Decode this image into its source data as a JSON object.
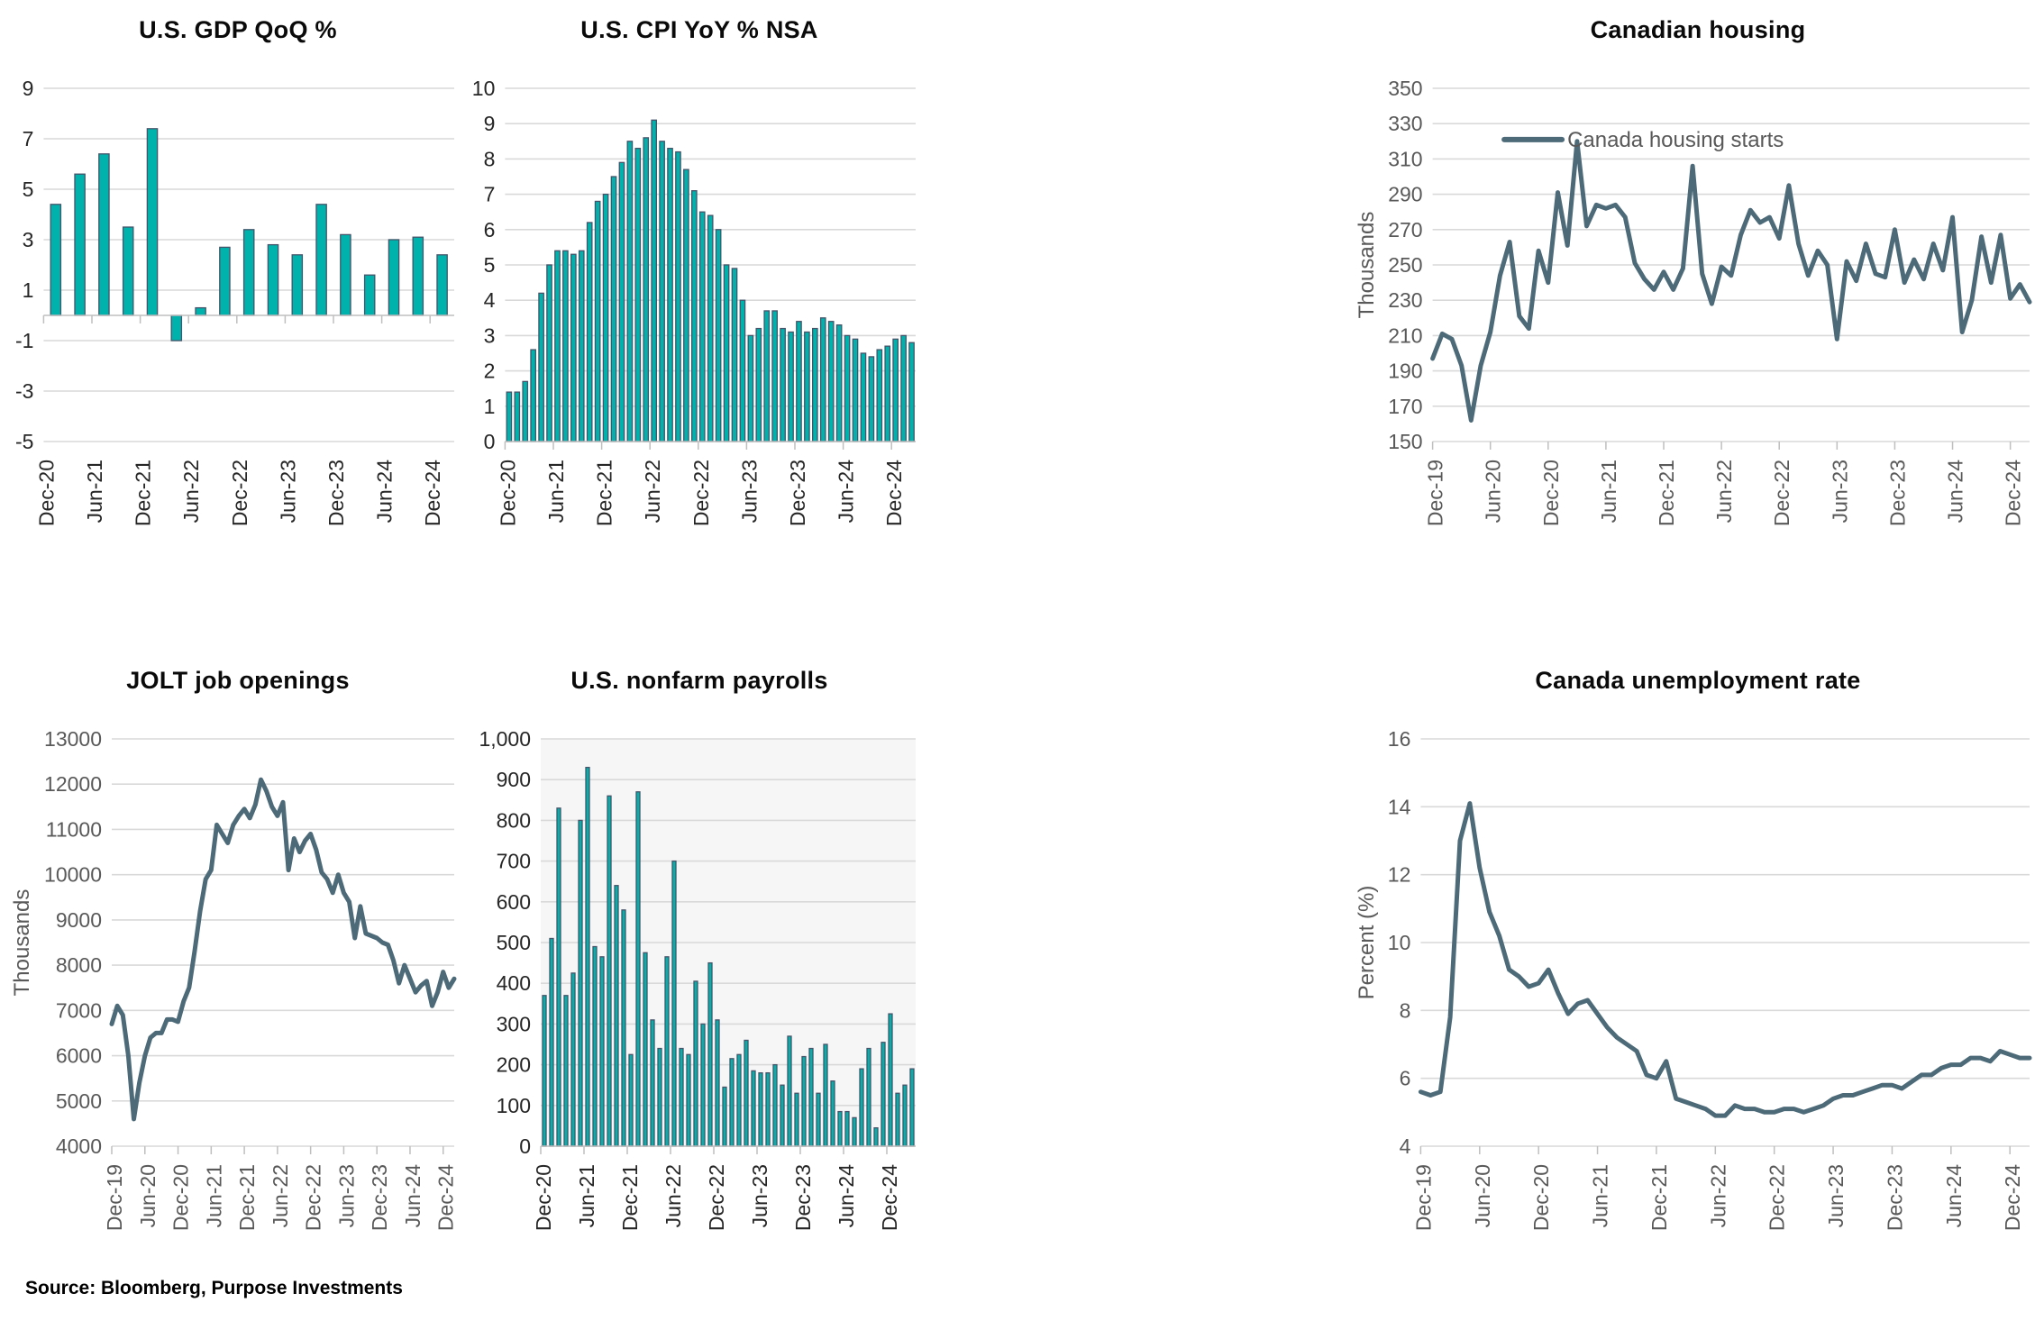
{
  "page": {
    "source": "Source: Bloomberg, Purpose Investments"
  },
  "colors": {
    "bar_fill": "#00b2ac",
    "bar_stroke": "#44546a",
    "line": "#4d6a79",
    "grid": "#d9d9d9",
    "axis_line": "#bfbfbf",
    "axis_text_bar": "#262626",
    "axis_text_line": "#595959",
    "legend_text": "#595959",
    "title_text": "#0a0a0a",
    "nonfarm_plot_bg": "#f6f6f6"
  },
  "chart_data": [
    {
      "id": "gdp",
      "type": "bar",
      "title": "U.S. GDP QoQ %",
      "x_start": "Dec-20",
      "x_tick_labels": [
        "Dec-20",
        "Jun-21",
        "Dec-21",
        "Jun-22",
        "Dec-22",
        "Jun-23",
        "Dec-23",
        "Jun-24",
        "Dec-24"
      ],
      "x_tick_step": 2,
      "y_ticks": [
        9,
        7,
        5,
        3,
        1,
        -1,
        -3,
        -5
      ],
      "y_tick_labels": [
        "9",
        "7",
        "5",
        "3",
        "1",
        "-1",
        "-3",
        "-5"
      ],
      "y_min": -5,
      "y_max": 9,
      "values": [
        4.4,
        5.6,
        6.4,
        3.5,
        7.4,
        -1.0,
        0.3,
        2.7,
        3.4,
        2.8,
        2.4,
        4.4,
        3.2,
        1.6,
        3.0,
        3.1,
        2.4
      ]
    },
    {
      "id": "cpi",
      "type": "bar",
      "title": "U.S. CPI YoY % NSA",
      "x_start": "Dec-20",
      "x_tick_labels": [
        "Dec-20",
        "Jun-21",
        "Dec-21",
        "Jun-22",
        "Dec-22",
        "Jun-23",
        "Dec-23",
        "Jun-24",
        "Dec-24"
      ],
      "x_tick_step": 6,
      "y_ticks": [
        10,
        9,
        8,
        7,
        6,
        5,
        4,
        3,
        2,
        1,
        0
      ],
      "y_tick_labels": [
        "10",
        "9",
        "8",
        "7",
        "6",
        "5",
        "4",
        "3",
        "2",
        "1",
        "0"
      ],
      "y_min": 0,
      "y_max": 10,
      "values": [
        1.4,
        1.4,
        1.7,
        2.6,
        4.2,
        5.0,
        5.4,
        5.4,
        5.3,
        5.4,
        6.2,
        6.8,
        7.0,
        7.5,
        7.9,
        8.5,
        8.3,
        8.6,
        9.1,
        8.5,
        8.3,
        8.2,
        7.7,
        7.1,
        6.5,
        6.4,
        6.0,
        5.0,
        4.9,
        4.0,
        3.0,
        3.2,
        3.7,
        3.7,
        3.2,
        3.1,
        3.4,
        3.1,
        3.2,
        3.5,
        3.4,
        3.3,
        3.0,
        2.9,
        2.5,
        2.4,
        2.6,
        2.7,
        2.9,
        3.0,
        2.8
      ]
    },
    {
      "id": "housing",
      "type": "line",
      "title": "Canadian housing",
      "ylabel": "Thousands",
      "legend": "Canada housing starts",
      "x_start": "Dec-19",
      "x_tick_labels": [
        "Dec-19",
        "Jun-20",
        "Dec-20",
        "Jun-21",
        "Dec-21",
        "Jun-22",
        "Dec-22",
        "Jun-23",
        "Dec-23",
        "Jun-24",
        "Dec-24"
      ],
      "x_tick_step": 6,
      "y_ticks": [
        350,
        330,
        310,
        290,
        270,
        250,
        230,
        210,
        190,
        170,
        150
      ],
      "y_tick_labels": [
        "350",
        "330",
        "310",
        "290",
        "270",
        "250",
        "230",
        "210",
        "190",
        "170",
        "150"
      ],
      "y_min": 150,
      "y_max": 350,
      "values": [
        197,
        211,
        208,
        193,
        162,
        193,
        212,
        244,
        263,
        221,
        214,
        258,
        240,
        291,
        261,
        320,
        272,
        284,
        282,
        284,
        277,
        251,
        242,
        236,
        246,
        236,
        248,
        306,
        245,
        228,
        249,
        244,
        267,
        281,
        274,
        277,
        265,
        295,
        262,
        244,
        258,
        250,
        208,
        252,
        241,
        262,
        245,
        243,
        270,
        240,
        253,
        242,
        262,
        247,
        277,
        212,
        230,
        266,
        240,
        267,
        231,
        239,
        229
      ]
    },
    {
      "id": "jolt",
      "type": "line",
      "title": "JOLT job openings",
      "ylabel": "Thousands",
      "x_start": "Dec-19",
      "x_tick_labels": [
        "Dec-19",
        "Jun-20",
        "Dec-20",
        "Jun-21",
        "Dec-21",
        "Jun-22",
        "Dec-22",
        "Jun-23",
        "Dec-23",
        "Jun-24",
        "Dec-24"
      ],
      "x_tick_step": 6,
      "y_ticks": [
        13000,
        12000,
        11000,
        10000,
        9000,
        8000,
        7000,
        6000,
        5000,
        4000
      ],
      "y_tick_labels": [
        "13000",
        "12000",
        "11000",
        "10000",
        "9000",
        "8000",
        "7000",
        "6000",
        "5000",
        "4000"
      ],
      "y_min": 4000,
      "y_max": 13000,
      "values": [
        6700,
        7100,
        6900,
        6000,
        4600,
        5400,
        6000,
        6400,
        6500,
        6500,
        6800,
        6800,
        6750,
        7200,
        7500,
        8300,
        9200,
        9900,
        10100,
        11100,
        10900,
        10700,
        11100,
        11300,
        11450,
        11250,
        11550,
        12100,
        11850,
        11500,
        11300,
        11600,
        10100,
        10800,
        10500,
        10750,
        10900,
        10550,
        10050,
        9900,
        9600,
        10000,
        9600,
        9400,
        8600,
        9300,
        8700,
        8650,
        8600,
        8500,
        8450,
        8100,
        7600,
        8000,
        7700,
        7400,
        7550,
        7650,
        7100,
        7400,
        7850,
        7500,
        7700
      ]
    },
    {
      "id": "nonfarm",
      "type": "bar",
      "title": "U.S. nonfarm payrolls",
      "plot_bg": true,
      "x_start": "Dec-20",
      "x_tick_labels": [
        "Dec-20",
        "Jun-21",
        "Dec-21",
        "Jun-22",
        "Dec-22",
        "Jun-23",
        "Dec-23",
        "Jun-24",
        "Dec-24"
      ],
      "x_tick_step": 6,
      "y_ticks": [
        1000,
        900,
        800,
        700,
        600,
        500,
        400,
        300,
        200,
        100,
        0
      ],
      "y_tick_labels": [
        "1,000",
        "900",
        "800",
        "700",
        "600",
        "500",
        "400",
        "300",
        "200",
        "100",
        "0"
      ],
      "y_min": 0,
      "y_max": 1000,
      "values": [
        370,
        510,
        830,
        370,
        425,
        800,
        930,
        490,
        465,
        860,
        640,
        580,
        225,
        870,
        475,
        310,
        240,
        465,
        700,
        240,
        225,
        405,
        300,
        450,
        310,
        145,
        215,
        225,
        260,
        185,
        180,
        180,
        200,
        150,
        270,
        130,
        220,
        240,
        130,
        250,
        160,
        85,
        85,
        70,
        190,
        240,
        45,
        255,
        325,
        130,
        150,
        190
      ]
    },
    {
      "id": "unemployment",
      "type": "line",
      "title": "Canada unemployment rate",
      "ylabel": "Percent (%)",
      "x_start": "Dec-19",
      "x_tick_labels": [
        "Dec-19",
        "Jun-20",
        "Dec-20",
        "Jun-21",
        "Dec-21",
        "Jun-22",
        "Dec-22",
        "Jun-23",
        "Dec-23",
        "Jun-24",
        "Dec-24"
      ],
      "x_tick_step": 6,
      "y_ticks": [
        16,
        14,
        12,
        10,
        8,
        6,
        4
      ],
      "y_tick_labels": [
        "16",
        "14",
        "12",
        "10",
        "8",
        "6",
        "4"
      ],
      "y_min": 4,
      "y_max": 16,
      "values": [
        5.6,
        5.5,
        5.6,
        7.8,
        13.0,
        14.1,
        12.2,
        10.9,
        10.2,
        9.2,
        9.0,
        8.7,
        8.8,
        9.2,
        8.5,
        7.9,
        8.2,
        8.3,
        7.9,
        7.5,
        7.2,
        7.0,
        6.8,
        6.1,
        6.0,
        6.5,
        5.4,
        5.3,
        5.2,
        5.1,
        4.9,
        4.9,
        5.2,
        5.1,
        5.1,
        5.0,
        5.0,
        5.1,
        5.1,
        5.0,
        5.1,
        5.2,
        5.4,
        5.5,
        5.5,
        5.6,
        5.7,
        5.8,
        5.8,
        5.7,
        5.9,
        6.1,
        6.1,
        6.3,
        6.4,
        6.4,
        6.6,
        6.6,
        6.5,
        6.8,
        6.7,
        6.6,
        6.6
      ]
    }
  ]
}
